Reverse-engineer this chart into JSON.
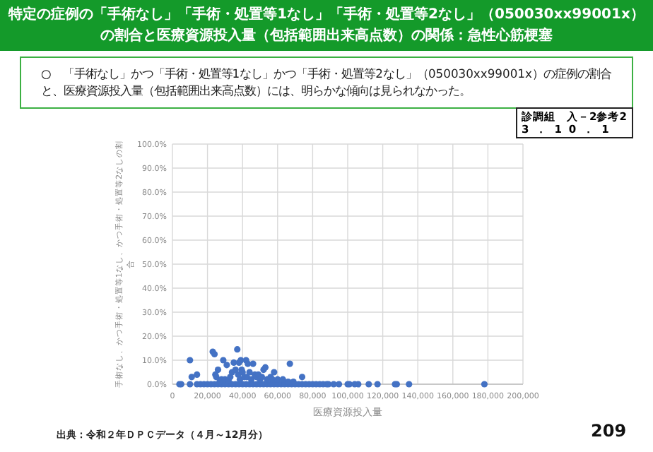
{
  "chart_data": {
    "type": "scatter",
    "title": "特定の症例の「手術なし」「手術・処置等1なし」「手術・処置等2なし」（050030xx99001x）の割合と医療資源投入量（包括範囲出来高点数）の関係：急性心筋梗塞",
    "annotations": [
      "○　「手術なし」かつ「手術・処置等1なし」かつ「手術・処置等2なし」（050030xx99001x）の症例の割合と、医療資源投入量（包括範囲出来高点数）には、明らかな傾向は見られなかった。",
      "診調組　入－2参考2",
      "3．10．1",
      "出典：令和２年ＤＰＣデータ（４月～12月分）",
      "209"
    ],
    "xlabel": "医療資源投入量",
    "ylabel": "手術なし、かつ手術・処置等1なし、かつ手術・処置等2なしの割合",
    "color": "#4472c4",
    "marker": "circle",
    "grid": true,
    "xlim": [
      0,
      200000
    ],
    "ylim": [
      0,
      100
    ],
    "xticks": [
      0,
      {
        "value": 20000,
        "label": "20,000"
      },
      {
        "value": 40000,
        "label": "40,000"
      },
      {
        "value": 60000,
        "label": "60,000"
      },
      {
        "value": 80000,
        "label": "80,000"
      },
      {
        "value": 100000,
        "label": "100,000"
      },
      {
        "value": 120000,
        "label": "120,000"
      },
      {
        "value": 140000,
        "label": "140,000"
      },
      {
        "value": 160000,
        "label": "160,000"
      },
      {
        "value": 180000,
        "label": "180,000"
      },
      {
        "value": 200000,
        "label": "200,000"
      }
    ],
    "yticks": [
      {
        "value": 0,
        "label": "0.0%"
      },
      {
        "value": 10,
        "label": "10.0%"
      },
      {
        "value": 20,
        "label": "20.0%"
      },
      {
        "value": 30,
        "label": "30.0%"
      },
      {
        "value": 40,
        "label": "40.0%"
      },
      {
        "value": 50,
        "label": "50.0%"
      },
      {
        "value": 60,
        "label": "60.0%"
      },
      {
        "value": 70,
        "label": "70.0%"
      },
      {
        "value": 80,
        "label": "80.0%"
      },
      {
        "value": 90,
        "label": "90.0%"
      },
      {
        "value": 100,
        "label": "100.0%"
      }
    ],
    "x": [
      4000,
      5000,
      10000,
      14000,
      16000,
      18000,
      20000,
      22000,
      24000,
      26000,
      28000,
      30000,
      32000,
      34000,
      36000,
      38000,
      40000,
      42000,
      44000,
      46000,
      48000,
      50000,
      52000,
      54000,
      56000,
      58000,
      60000,
      62000,
      64000,
      66000,
      68000,
      70000,
      72000,
      74000,
      76000,
      78000,
      80000,
      82000,
      84000,
      86000,
      88000,
      89000,
      92000,
      95000,
      100000,
      101000,
      104000,
      106000,
      112000,
      117000,
      127000,
      128000,
      135000,
      178000,
      10000,
      11000,
      14000,
      23000,
      24000,
      24500,
      25000,
      26000,
      27000,
      28000,
      29000,
      30000,
      31000,
      32000,
      33000,
      34000,
      35000,
      36000,
      37000,
      37500,
      38000,
      38500,
      39000,
      39500,
      40000,
      41000,
      42000,
      42500,
      43000,
      44000,
      45000,
      46000,
      47000,
      48000,
      49000,
      50000,
      51000,
      52000,
      53000,
      54000,
      56000,
      57000,
      58000,
      60000,
      63000,
      66000,
      67000,
      69000,
      74000
    ],
    "values": [
      0,
      0,
      0,
      0,
      0,
      0,
      0,
      0,
      0,
      0,
      0,
      0,
      0,
      0,
      0,
      0,
      0,
      0,
      0,
      0,
      0,
      0,
      0,
      0,
      0,
      0,
      0,
      0,
      0,
      0,
      0,
      0,
      0,
      0,
      0,
      0,
      0,
      0,
      0,
      0,
      0,
      0,
      0,
      0,
      0,
      0,
      0,
      0,
      0,
      0,
      0,
      0,
      0,
      0,
      10,
      3,
      4,
      13.5,
      12.5,
      4,
      3,
      6,
      1,
      2,
      10,
      2,
      8,
      1.5,
      3,
      5,
      9,
      6,
      14.5,
      4,
      9,
      2,
      10,
      6,
      5,
      3,
      10,
      3,
      8.5,
      5,
      2,
      8.5,
      4,
      3,
      4,
      2,
      3,
      6,
      7,
      2,
      3,
      2,
      5,
      2,
      2,
      1,
      8.5,
      1,
      3
    ]
  }
}
